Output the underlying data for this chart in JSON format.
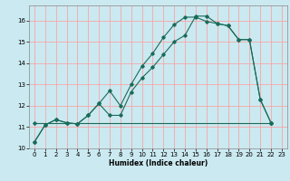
{
  "xlabel": "Humidex (Indice chaleur)",
  "bg_color": "#cbe9f0",
  "grid_color": "#ff9999",
  "line_color": "#1a6b5a",
  "xlim": [
    -0.5,
    23.5
  ],
  "ylim": [
    10.0,
    16.7
  ],
  "yticks": [
    10,
    11,
    12,
    13,
    14,
    15,
    16
  ],
  "xticks": [
    0,
    1,
    2,
    3,
    4,
    5,
    6,
    7,
    8,
    9,
    10,
    11,
    12,
    13,
    14,
    15,
    16,
    17,
    18,
    19,
    20,
    21,
    22,
    23
  ],
  "line1_x": [
    0,
    1,
    2,
    3,
    4,
    5,
    6,
    7,
    8,
    9,
    10,
    11,
    12,
    13,
    14,
    15,
    16,
    17,
    18,
    19,
    20,
    21,
    22
  ],
  "line1_y": [
    10.3,
    11.1,
    11.35,
    11.2,
    11.15,
    11.55,
    12.1,
    11.55,
    11.55,
    12.65,
    13.3,
    13.8,
    14.4,
    15.0,
    15.3,
    16.2,
    16.2,
    15.85,
    15.75,
    15.1,
    15.1,
    12.3,
    11.2
  ],
  "line2_x": [
    0,
    1,
    2,
    3,
    4,
    5,
    6,
    7,
    8,
    9,
    10,
    11,
    12,
    13,
    14,
    15,
    16,
    17,
    18,
    19,
    20,
    21,
    22
  ],
  "line2_y": [
    10.3,
    11.1,
    11.35,
    11.2,
    11.15,
    11.55,
    12.1,
    12.7,
    12.0,
    13.0,
    13.85,
    14.45,
    15.2,
    15.8,
    16.15,
    16.15,
    15.95,
    15.85,
    15.75,
    15.1,
    15.1,
    12.3,
    11.2
  ],
  "line3_x": [
    0,
    22
  ],
  "line3_y": [
    11.2,
    11.2
  ],
  "marker": "D",
  "markersize": 1.8,
  "linewidth": 0.8
}
